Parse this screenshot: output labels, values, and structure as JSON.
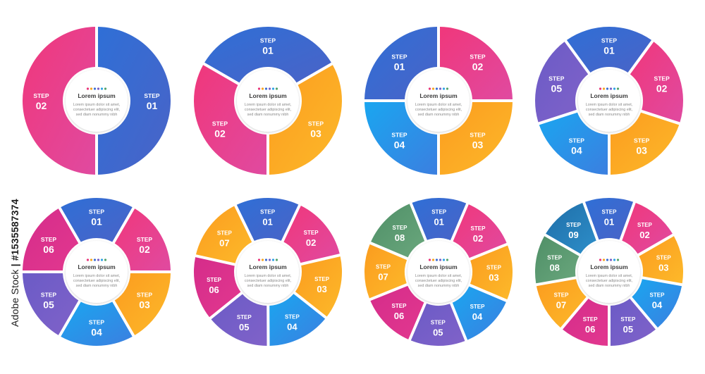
{
  "step_word": "STEP",
  "center": {
    "title": "Lorem ipsum",
    "lines": [
      "Lorem ipsum dolor sit amet,",
      "consectetuer adipiscing elit,",
      "sed diam nonummy nibh"
    ],
    "dot_colors": [
      "#e8357a",
      "#f5a623",
      "#3b6fd4",
      "#7b5fc4",
      "#2fa3e6",
      "#55a36b"
    ]
  },
  "watermark_id": {
    "brand": "Adobe Stock",
    "separator": " | ",
    "number": "#1535587374"
  },
  "colors": {
    "blue": [
      "#2f6fd6",
      "#4a63c7"
    ],
    "pink": [
      "#f0377b",
      "#e04aa0"
    ],
    "orange": [
      "#fb9c1f",
      "#fdb92a"
    ],
    "cyan": [
      "#1aa6f0",
      "#3b7fe0"
    ],
    "purple": [
      "#6b5bc6",
      "#8062c9"
    ],
    "magenta": [
      "#d52c8a",
      "#e2388f"
    ],
    "teal": [
      "#1f6ea8",
      "#2d8ec9"
    ],
    "green": [
      "#4f8f67",
      "#6aa77d"
    ]
  },
  "diagrams": [
    {
      "steps": [
        {
          "num": "01",
          "color": "blue"
        },
        {
          "num": "02",
          "color": "pink"
        }
      ]
    },
    {
      "steps": [
        {
          "num": "01",
          "color": "blue"
        },
        {
          "num": "03",
          "color": "orange"
        },
        {
          "num": "02",
          "color": "pink"
        }
      ]
    },
    {
      "steps": [
        {
          "num": "02",
          "color": "pink"
        },
        {
          "num": "03",
          "color": "orange"
        },
        {
          "num": "04",
          "color": "cyan"
        },
        {
          "num": "01",
          "color": "blue"
        }
      ]
    },
    {
      "steps": [
        {
          "num": "01",
          "color": "blue"
        },
        {
          "num": "02",
          "color": "pink"
        },
        {
          "num": "03",
          "color": "orange"
        },
        {
          "num": "04",
          "color": "cyan"
        },
        {
          "num": "05",
          "color": "purple"
        }
      ]
    },
    {
      "steps": [
        {
          "num": "01",
          "color": "blue"
        },
        {
          "num": "02",
          "color": "pink"
        },
        {
          "num": "03",
          "color": "orange"
        },
        {
          "num": "04",
          "color": "cyan"
        },
        {
          "num": "05",
          "color": "purple"
        },
        {
          "num": "06",
          "color": "magenta"
        }
      ]
    },
    {
      "steps": [
        {
          "num": "01",
          "color": "blue"
        },
        {
          "num": "02",
          "color": "pink"
        },
        {
          "num": "03",
          "color": "orange"
        },
        {
          "num": "04",
          "color": "cyan"
        },
        {
          "num": "05",
          "color": "purple"
        },
        {
          "num": "06",
          "color": "magenta"
        },
        {
          "num": "07",
          "color": "orange"
        }
      ]
    },
    {
      "steps": [
        {
          "num": "01",
          "color": "blue"
        },
        {
          "num": "02",
          "color": "pink"
        },
        {
          "num": "03",
          "color": "orange"
        },
        {
          "num": "04",
          "color": "cyan"
        },
        {
          "num": "05",
          "color": "purple"
        },
        {
          "num": "06",
          "color": "magenta"
        },
        {
          "num": "07",
          "color": "orange"
        },
        {
          "num": "08",
          "color": "green"
        }
      ]
    },
    {
      "steps": [
        {
          "num": "01",
          "color": "blue"
        },
        {
          "num": "02",
          "color": "pink"
        },
        {
          "num": "03",
          "color": "orange"
        },
        {
          "num": "04",
          "color": "cyan"
        },
        {
          "num": "05",
          "color": "purple"
        },
        {
          "num": "06",
          "color": "magenta"
        },
        {
          "num": "07",
          "color": "orange"
        },
        {
          "num": "08",
          "color": "green"
        },
        {
          "num": "09",
          "color": "teal"
        }
      ]
    }
  ]
}
